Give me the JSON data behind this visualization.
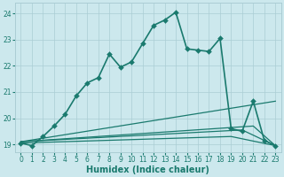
{
  "title": "",
  "xlabel": "Humidex (Indice chaleur)",
  "ylabel": "",
  "xlim": [
    -0.5,
    23.5
  ],
  "ylim": [
    18.7,
    24.4
  ],
  "background_color": "#cce8ed",
  "line_color": "#1a7a6e",
  "grid_color": "#aacdd4",
  "xticks": [
    0,
    1,
    2,
    3,
    4,
    5,
    6,
    7,
    8,
    9,
    10,
    11,
    12,
    13,
    14,
    15,
    16,
    17,
    18,
    19,
    20,
    21,
    22,
    23
  ],
  "yticks": [
    19,
    20,
    21,
    22,
    23,
    24
  ],
  "series": [
    {
      "x": [
        0,
        1,
        2,
        3,
        4,
        5,
        6,
        7,
        8,
        9,
        10,
        11,
        12,
        13,
        14,
        15,
        16,
        17,
        18,
        19,
        20,
        21,
        22,
        23
      ],
      "y": [
        19.05,
        18.95,
        19.3,
        19.7,
        20.15,
        20.85,
        21.35,
        21.55,
        22.45,
        21.95,
        22.15,
        22.85,
        23.55,
        23.75,
        24.05,
        22.65,
        22.6,
        22.55,
        23.05,
        19.6,
        19.5,
        20.65,
        19.15,
        18.95
      ],
      "marker": "D",
      "markersize": 3.0,
      "linewidth": 1.2,
      "zorder": 5
    },
    {
      "x": [
        0,
        23
      ],
      "y": [
        19.1,
        20.65
      ],
      "marker": null,
      "linewidth": 0.9,
      "zorder": 3
    },
    {
      "x": [
        0,
        21,
        23
      ],
      "y": [
        19.1,
        19.7,
        18.95
      ],
      "marker": null,
      "linewidth": 0.9,
      "zorder": 3
    },
    {
      "x": [
        0,
        20,
        23
      ],
      "y": [
        19.1,
        19.55,
        18.95
      ],
      "marker": null,
      "linewidth": 0.9,
      "zorder": 3
    },
    {
      "x": [
        0,
        19,
        23
      ],
      "y": [
        19.05,
        19.3,
        18.95
      ],
      "marker": null,
      "linewidth": 0.9,
      "zorder": 3
    }
  ]
}
